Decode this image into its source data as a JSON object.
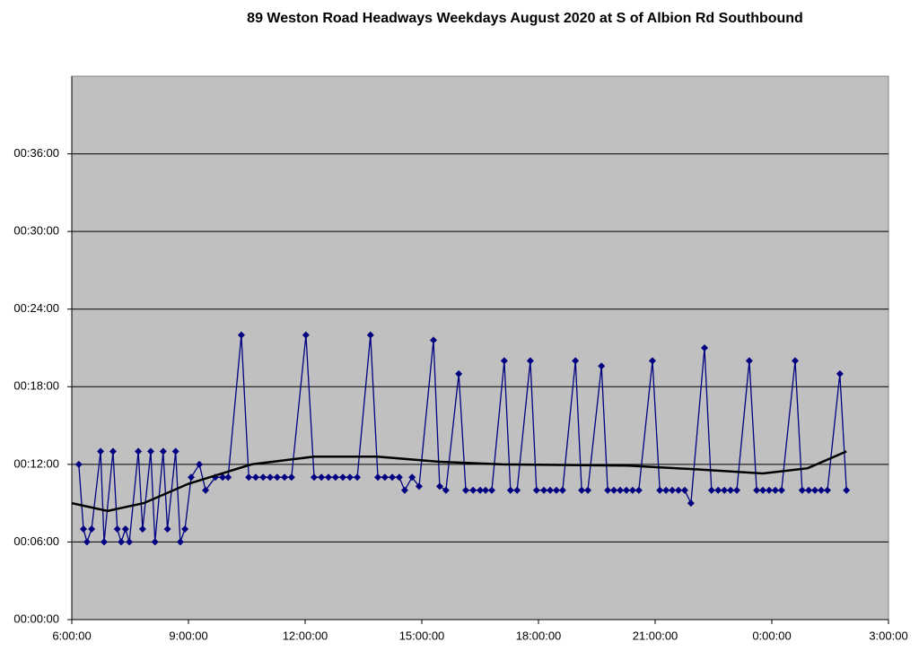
{
  "chart_data": {
    "type": "line",
    "title": "89 Weston Road Headways Weekdays August 2020 at S of Albion Rd Southbound",
    "xlim": [
      6,
      27
    ],
    "xticks": [
      {
        "value": 6,
        "label": "6:00:00"
      },
      {
        "value": 9,
        "label": "9:00:00"
      },
      {
        "value": 12,
        "label": "12:00:00"
      },
      {
        "value": 15,
        "label": "15:00:00"
      },
      {
        "value": 18,
        "label": "18:00:00"
      },
      {
        "value": 21,
        "label": "21:00:00"
      },
      {
        "value": 24,
        "label": "0:00:00"
      },
      {
        "value": 27,
        "label": "3:00:00"
      }
    ],
    "ylim": [
      0,
      42
    ],
    "yticks": [
      {
        "value": 0,
        "label": "00:00:00"
      },
      {
        "value": 6,
        "label": "00:06:00"
      },
      {
        "value": 12,
        "label": "00:12:00"
      },
      {
        "value": 18,
        "label": "00:18:00"
      },
      {
        "value": 24,
        "label": "00:24:00"
      },
      {
        "value": 30,
        "label": "00:30:00"
      },
      {
        "value": 36,
        "label": "00:36:00"
      }
    ],
    "grid": true,
    "series": [
      {
        "color": "#000080",
        "markers": true,
        "x": [
          6.18,
          6.3,
          6.39,
          6.51,
          6.74,
          6.83,
          7.06,
          7.17,
          7.27,
          7.38,
          7.48,
          7.71,
          7.82,
          8.03,
          8.14,
          8.35,
          8.46,
          8.67,
          8.79,
          8.91,
          9.07,
          9.28,
          9.44,
          9.69,
          9.88,
          10.02,
          10.36,
          10.55,
          10.73,
          10.92,
          11.1,
          11.28,
          11.47,
          11.65,
          12.02,
          12.23,
          12.42,
          12.6,
          12.78,
          12.97,
          13.15,
          13.34,
          13.68,
          13.87,
          14.05,
          14.24,
          14.42,
          14.56,
          14.75,
          14.93,
          15.3,
          15.46,
          15.62,
          15.95,
          16.13,
          16.32,
          16.5,
          16.64,
          16.8,
          17.12,
          17.28,
          17.45,
          17.79,
          17.95,
          18.14,
          18.3,
          18.46,
          18.62,
          18.95,
          19.11,
          19.27,
          19.62,
          19.78,
          19.94,
          20.1,
          20.26,
          20.42,
          20.58,
          20.93,
          21.12,
          21.28,
          21.44,
          21.6,
          21.76,
          21.92,
          22.27,
          22.45,
          22.62,
          22.78,
          22.94,
          23.1,
          23.42,
          23.61,
          23.77,
          23.93,
          24.09,
          24.25,
          24.6,
          24.78,
          24.95,
          25.11,
          25.27,
          25.43,
          25.75,
          25.92
        ],
        "values": [
          12,
          7,
          6,
          7,
          13,
          6,
          13,
          7,
          6,
          7,
          6,
          13,
          7,
          13,
          6,
          13,
          7,
          13,
          6,
          7,
          11,
          12,
          10,
          11,
          11,
          11,
          22,
          11,
          11,
          11,
          11,
          11,
          11,
          11,
          22,
          11,
          11,
          11,
          11,
          11,
          11,
          11,
          22,
          11,
          11,
          11,
          11,
          10,
          11,
          10.3,
          21.6,
          10.3,
          10,
          19,
          10,
          10,
          10,
          10,
          10,
          20,
          10,
          10,
          20,
          10,
          10,
          10,
          10,
          10,
          20,
          10,
          10,
          19.6,
          10,
          10,
          10,
          10,
          10,
          10,
          20,
          10,
          10,
          10,
          10,
          10,
          9,
          21,
          10,
          10,
          10,
          10,
          10,
          20,
          10,
          10,
          10,
          10,
          10,
          20,
          10,
          10,
          10,
          10,
          10,
          19,
          10
        ]
      },
      {
        "color": "#000000",
        "markers": false,
        "x": [
          6,
          6.92,
          7.85,
          9,
          10.62,
          12.23,
          13.85,
          15.46,
          17.08,
          20.31,
          22.15,
          23.77,
          24.92,
          25.92
        ],
        "values": [
          9,
          8.4,
          9,
          10.5,
          12,
          12.6,
          12.6,
          12.2,
          12,
          11.9,
          11.6,
          11.3,
          11.7,
          13
        ]
      }
    ]
  }
}
